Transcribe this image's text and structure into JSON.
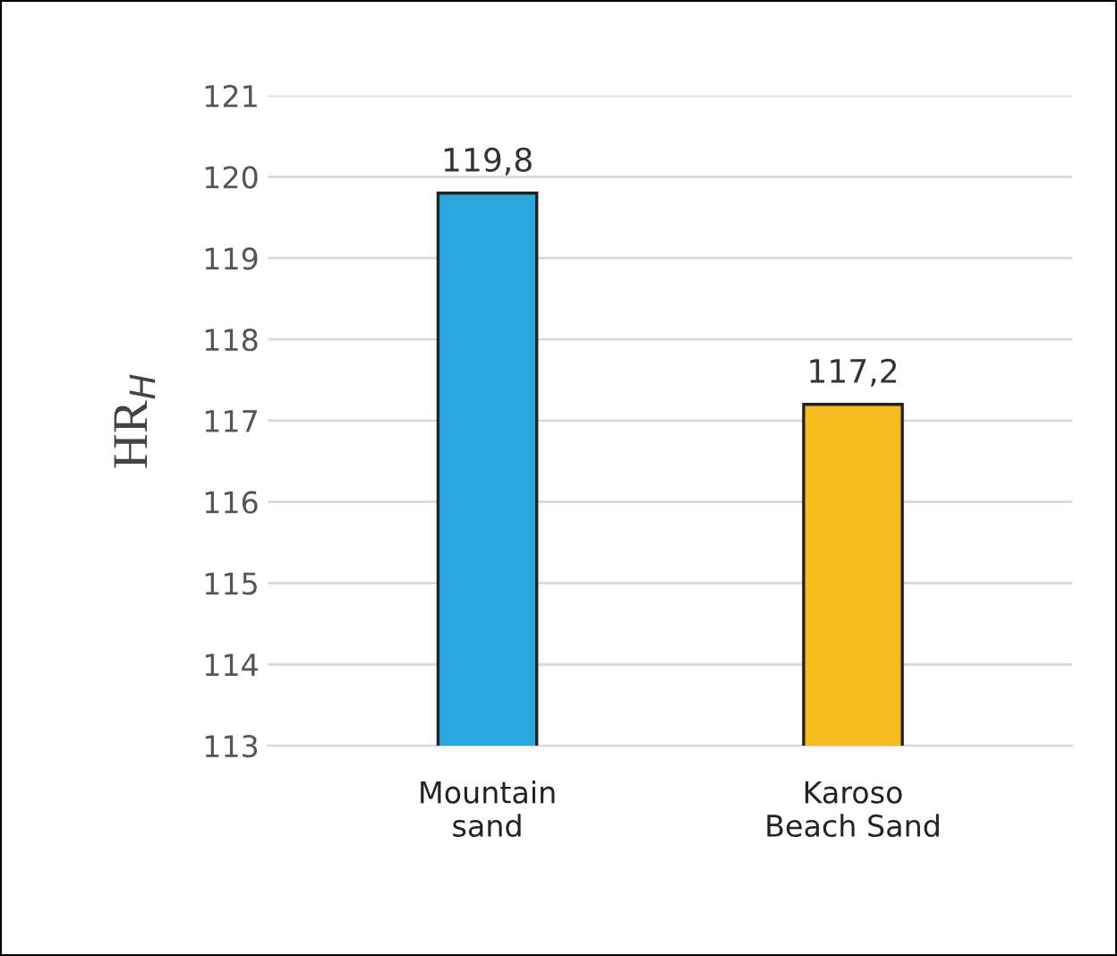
{
  "chart_data": {
    "type": "bar",
    "ylabel": "HR$_{H}$",
    "categories": [
      "Mountain\nsand",
      "Karoso\nBeach Sand"
    ],
    "values": [
      119.8,
      117.2
    ],
    "colors": [
      "#29a8e0",
      "#f5bb1f"
    ],
    "value_labels": [
      "119,8",
      "117,2"
    ],
    "ylim": [
      113,
      121
    ],
    "yticks": [
      113,
      114,
      115,
      116,
      117,
      118,
      119,
      120,
      121
    ],
    "grid": "y"
  }
}
